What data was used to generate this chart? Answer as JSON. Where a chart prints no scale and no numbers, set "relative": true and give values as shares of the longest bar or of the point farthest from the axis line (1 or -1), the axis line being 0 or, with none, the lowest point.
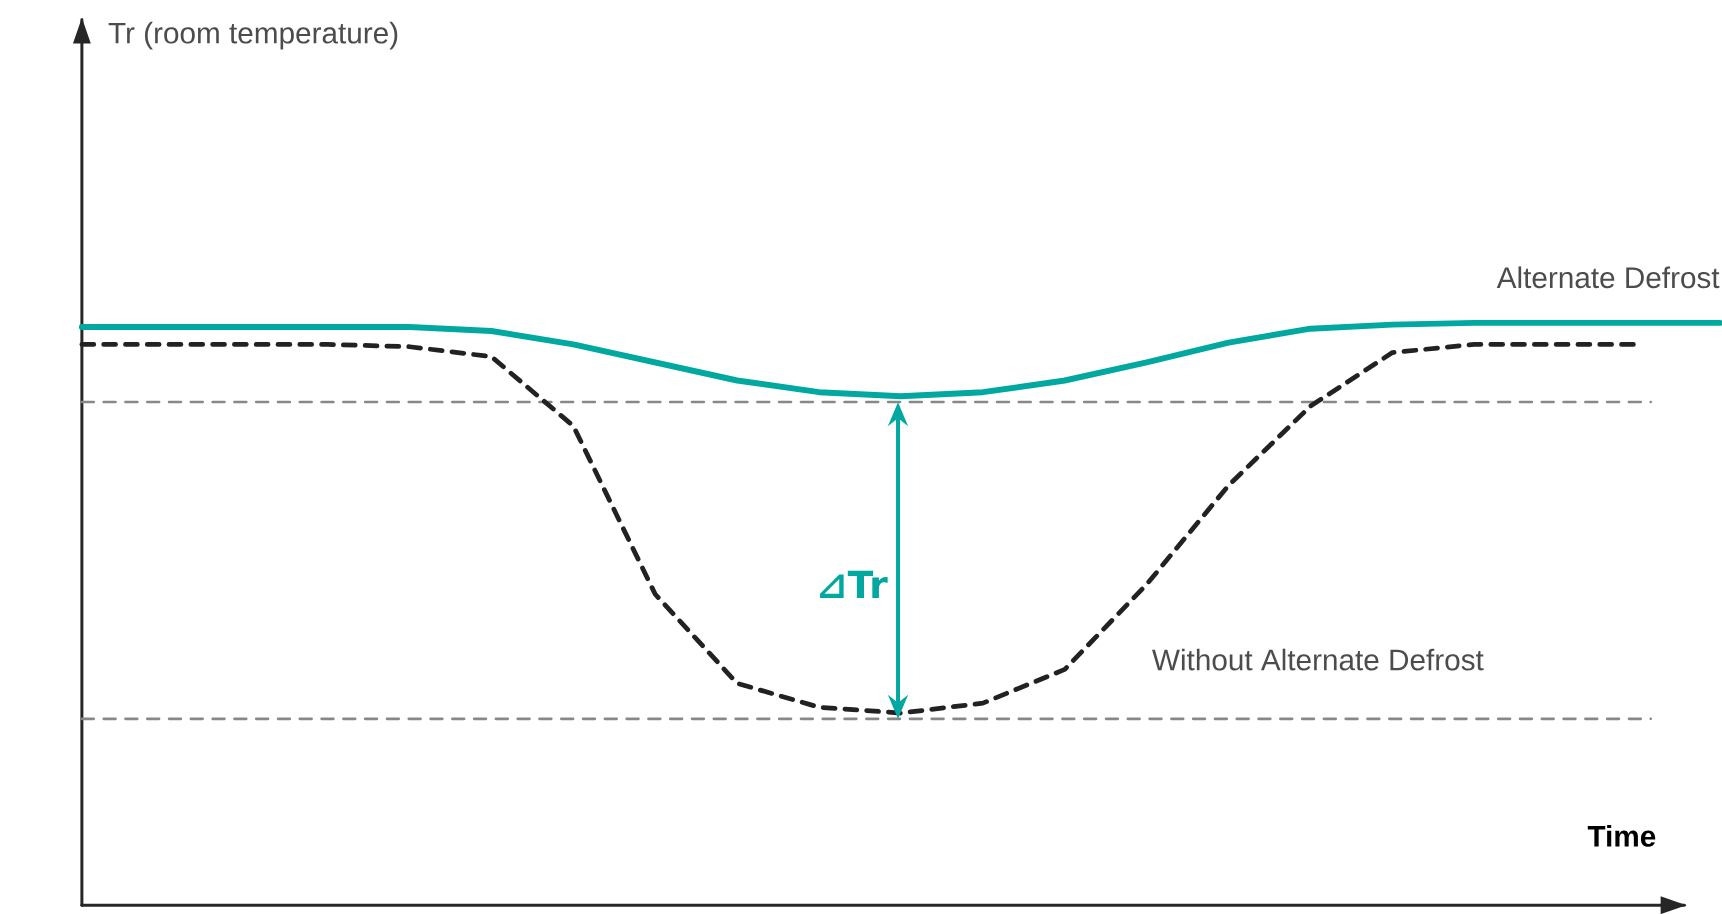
{
  "chart_data": {
    "type": "line",
    "relative": true,
    "xlabel": "Time",
    "legend": false,
    "marker": "none",
    "categories": [
      null,
      null,
      null,
      null,
      null,
      null,
      null,
      null,
      null,
      null,
      null,
      null,
      null,
      null,
      null,
      null,
      null,
      null,
      null,
      null,
      null
    ],
    "series": [
      {
        "name": "Alternate Defrost",
        "color": "#00a8a0",
        "line_style": "solid",
        "values": [
          0.993,
          0.993,
          0.993,
          0.993,
          0.993,
          0.986,
          0.963,
          0.932,
          0.901,
          0.881,
          0.874,
          0.881,
          0.901,
          0.932,
          0.966,
          0.99,
          0.997,
          1,
          1,
          1,
          1
        ]
      },
      {
        "name": "Without Alternate Defrost",
        "color": "#222222",
        "line_style": "dashed",
        "values": [
          0.963,
          0.963,
          0.963,
          0.963,
          0.959,
          0.942,
          0.823,
          0.534,
          0.381,
          0.34,
          0.33,
          0.347,
          0.405,
          0.551,
          0.721,
          0.857,
          0.949,
          0.963,
          0.963,
          0.963,
          null
        ]
      }
    ],
    "ref_lines": [
      {
        "axis": "y",
        "value": 0.864,
        "color": "#888888",
        "line_style": "dashed"
      },
      {
        "axis": "y",
        "value": 0.32,
        "color": "#888888",
        "line_style": "dashed"
      }
    ],
    "annotations": [
      "⊿Tr",
      "Tr (room temperature)"
    ]
  }
}
